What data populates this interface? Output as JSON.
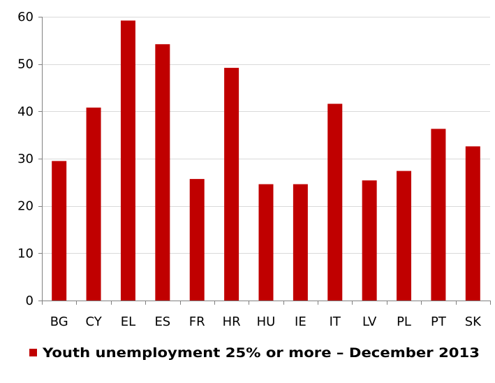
{
  "chart_data": {
    "type": "bar",
    "categories": [
      "BG",
      "CY",
      "EL",
      "ES",
      "FR",
      "HR",
      "HU",
      "IE",
      "IT",
      "LV",
      "PL",
      "PT",
      "SK"
    ],
    "series": [
      {
        "name": "Youth unemployment 25% or more – December 2013",
        "values": [
          29.5,
          40.8,
          59.2,
          54.2,
          25.7,
          49.2,
          24.6,
          24.6,
          41.6,
          25.4,
          27.4,
          36.3,
          32.6
        ]
      }
    ],
    "ylim": [
      0,
      60
    ],
    "yticks": [
      0,
      10,
      20,
      30,
      40,
      50,
      60
    ],
    "grid": true,
    "legend_position": "bottom",
    "colors": {
      "bar": "#c00000",
      "grid": "#d9d9d9",
      "axis": "#808080",
      "text": "#000000"
    }
  }
}
